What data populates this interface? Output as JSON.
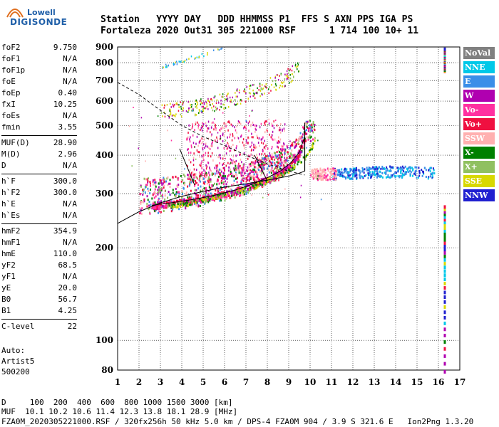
{
  "logo": {
    "line1": "Lowell",
    "line2": "DIGISONDE"
  },
  "header": {
    "row1": "Station   YYYY DAY   DDD HHMMSS P1  FFS S AXN PPS IGA PS",
    "row2": "Fortaleza 2020 Out31 305 221000 RSF      1 714 100 10+ 11"
  },
  "params": [
    [
      {
        "n": "foF2",
        "v": "9.750"
      },
      {
        "n": "foF1",
        "v": "N/A"
      },
      {
        "n": "foF1p",
        "v": "N/A"
      },
      {
        "n": "foE",
        "v": "N/A"
      },
      {
        "n": "foEp",
        "v": "0.40"
      },
      {
        "n": "fxI",
        "v": "10.25"
      },
      {
        "n": "foEs",
        "v": "N/A"
      },
      {
        "n": "fmin",
        "v": "3.55"
      }
    ],
    [
      {
        "n": "MUF(D)",
        "v": "28.90"
      },
      {
        "n": "M(D)",
        "v": "2.96"
      },
      {
        "n": "D",
        "v": "N/A"
      }
    ],
    [
      {
        "n": "h`F",
        "v": "300.0"
      },
      {
        "n": "h`F2",
        "v": "300.0"
      },
      {
        "n": "h`E",
        "v": "N/A"
      },
      {
        "n": "h`Es",
        "v": "N/A"
      }
    ],
    [
      {
        "n": "hmF2",
        "v": "354.9"
      },
      {
        "n": "hmF1",
        "v": "N/A"
      },
      {
        "n": "hmE",
        "v": "110.0"
      },
      {
        "n": "yF2",
        "v": "68.5"
      },
      {
        "n": "yF1",
        "v": "N/A"
      },
      {
        "n": "yE",
        "v": "20.0"
      },
      {
        "n": "B0",
        "v": "56.7"
      },
      {
        "n": "B1",
        "v": "4.25"
      }
    ],
    [
      {
        "n": "C-level",
        "v": "22"
      }
    ]
  ],
  "auto": {
    "line1": "Auto:",
    "line2": "Artist5",
    "line3": "500200"
  },
  "legend": [
    {
      "label": "NoVal",
      "color": "#808080"
    },
    {
      "label": "NNE",
      "color": "#00c8e8"
    },
    {
      "label": "E",
      "color": "#3a8ee8"
    },
    {
      "label": "W",
      "color": "#b000b0"
    },
    {
      "label": "Vo-",
      "color": "#ff30a0"
    },
    {
      "label": "Vo+",
      "color": "#f01040"
    },
    {
      "label": "SSW",
      "color": "#ffb0b0"
    },
    {
      "label": "X-",
      "color": "#008000"
    },
    {
      "label": "X+",
      "color": "#90c060"
    },
    {
      "label": "SSE",
      "color": "#d8d800"
    },
    {
      "label": "NNW",
      "color": "#2020d0"
    }
  ],
  "footer": {
    "dist": "D     100  200  400  600  800 1000 1500 3000 [km]",
    "muf": "MUF  10.1 10.2 10.6 11.4 12.3 13.8 18.1 28.9 [MHz]",
    "file": "FZA0M_2020305221000.RSF / 320fx256h 50 kHz 5.0 km / DPS-4 FZA0M 904 / 3.9 S 321.6 E   Ion2Png 1.3.20"
  },
  "chart_data": {
    "type": "scatter",
    "xlabel": "",
    "ylabel": "",
    "xlim": [
      1,
      17
    ],
    "ylim": [
      80,
      900
    ],
    "y_scale": "log",
    "xticks": [
      "1",
      "2",
      "3",
      "4",
      "5",
      "6",
      "7",
      "8",
      "9",
      "10",
      "11",
      "12",
      "13",
      "14",
      "15",
      "16",
      "17"
    ],
    "yticks": [
      "80",
      "100",
      "200",
      "300",
      "400",
      "500",
      "600",
      "700",
      "800",
      "900"
    ],
    "grid": true,
    "o_trace": {
      "x": [
        2.6,
        3.5,
        4.5,
        5.5,
        6.5,
        7.3,
        8.0,
        8.6,
        9.1,
        9.5,
        9.75
      ],
      "y": [
        275,
        280,
        287,
        296,
        308,
        322,
        338,
        355,
        378,
        410,
        460
      ]
    },
    "x_trace": {
      "x": [
        3.3,
        4.2,
        5.2,
        6.2,
        7.2,
        8.0,
        8.7,
        9.3,
        9.8,
        10.2
      ],
      "y": [
        275,
        280,
        289,
        301,
        316,
        332,
        350,
        372,
        400,
        445
      ]
    },
    "profile": {
      "x": [
        1.0,
        2.0,
        3.0,
        4.0,
        5.0,
        6.0,
        7.0,
        8.0,
        9.0,
        9.5,
        9.75
      ],
      "y": [
        240,
        262,
        280,
        294,
        305,
        315,
        323,
        332,
        342,
        350,
        355
      ]
    },
    "muf_curve": {
      "x": [
        1.0,
        2.0,
        3.0,
        4.0,
        5.0,
        6.0,
        7.0,
        8.0,
        9.0,
        9.75
      ],
      "y": [
        690,
        630,
        560,
        500,
        460,
        430,
        400,
        375,
        355,
        345
      ]
    },
    "second_hop": {
      "x": [
        3.0,
        4.0,
        5.0,
        6.0,
        7.0,
        8.0,
        8.7,
        9.2,
        9.5
      ],
      "y": [
        550,
        560,
        575,
        600,
        630,
        665,
        700,
        740,
        790
      ]
    },
    "third_hop": {
      "x": [
        3.0,
        3.6,
        4.2,
        4.8,
        5.4,
        5.9
      ],
      "y": [
        780,
        800,
        825,
        850,
        875,
        895
      ]
    },
    "spread_f": {
      "x": [
        11.0,
        12.0,
        13.0,
        14.0,
        15.0,
        15.8
      ],
      "y": [
        350,
        352,
        355,
        356,
        354,
        352
      ]
    },
    "scaled_foF2": 9.75
  }
}
